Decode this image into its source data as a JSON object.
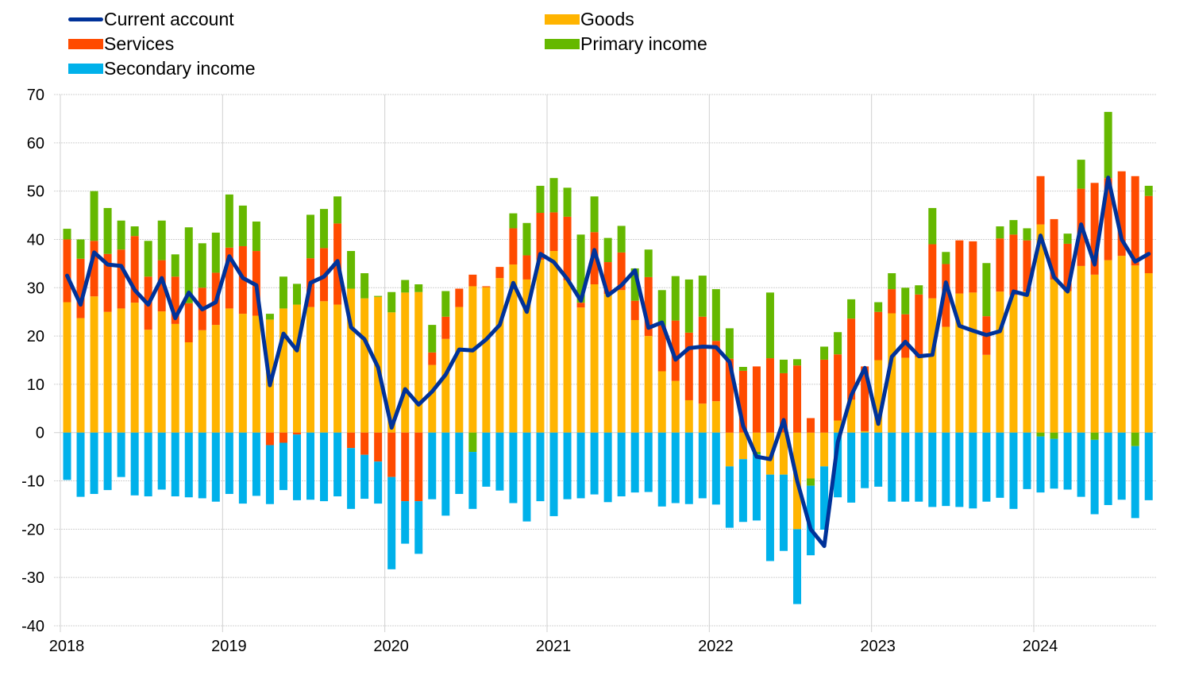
{
  "chart_data": {
    "type": "bar",
    "subtype": "stacked-bar-with-line",
    "title": "",
    "xlabel": "",
    "ylabel": "",
    "ylim": [
      -40,
      70
    ],
    "yticks": [
      70,
      60,
      50,
      40,
      30,
      20,
      10,
      0,
      -10,
      -20,
      -30,
      -40
    ],
    "xticks": [
      "2018",
      "2019",
      "2020",
      "2021",
      "2022",
      "2023",
      "2024"
    ],
    "grid": true,
    "legend_position": "top",
    "frequency": "monthly",
    "start": "2018-01",
    "end": "2024-09",
    "legend": [
      {
        "key": "ca",
        "label": "Current account",
        "type": "line",
        "color": "#003299"
      },
      {
        "key": "goods",
        "label": "Goods",
        "type": "bar",
        "color": "#FFB400"
      },
      {
        "key": "services",
        "label": "Services",
        "type": "bar",
        "color": "#FF4B00"
      },
      {
        "key": "primary",
        "label": "Primary income",
        "type": "bar",
        "color": "#65B800"
      },
      {
        "key": "secondary",
        "label": "Secondary income",
        "type": "bar",
        "color": "#00B1EA"
      }
    ],
    "series": [
      {
        "name": "Goods",
        "key": "goods",
        "values": [
          27.0,
          23.7,
          28.2,
          25.0,
          25.7,
          26.9,
          21.3,
          25.1,
          22.5,
          18.7,
          21.2,
          22.3,
          25.7,
          24.6,
          24.2,
          23.4,
          25.7,
          26.5,
          26.0,
          27.2,
          26.5,
          29.8,
          27.8,
          28.1,
          24.9,
          29.0,
          29.1,
          14.0,
          19.4,
          26.0,
          30.3,
          30.1,
          32.0,
          34.8,
          31.7,
          35.8,
          37.6,
          31.5,
          25.9,
          30.7,
          28.7,
          29.5,
          23.3,
          20.0,
          12.7,
          10.7,
          6.7,
          6.0,
          6.5,
          -7.0,
          -5.5,
          -4.0,
          -8.7,
          -8.7,
          -20.0,
          -9.5,
          -7.0,
          2.5,
          6.8,
          0.3,
          15.0,
          24.7,
          15.5,
          15.6,
          27.8,
          21.9,
          28.8,
          29.0,
          16.1,
          29.2,
          28.5,
          29.2,
          43.1,
          31.7,
          29.3,
          34.5,
          32.7,
          35.7,
          36.6,
          34.6,
          33.0
        ]
      },
      {
        "name": "Services",
        "key": "services",
        "values": [
          13.0,
          12.3,
          11.5,
          12.0,
          12.2,
          13.8,
          11.0,
          10.6,
          9.8,
          8.1,
          8.8,
          10.8,
          12.6,
          14.0,
          13.4,
          -2.6,
          -2.1,
          -0.4,
          10.1,
          11.0,
          16.8,
          -3.2,
          -4.6,
          -6.0,
          -9.2,
          -14.2,
          -14.2,
          2.6,
          4.6,
          3.8,
          2.4,
          0.2,
          2.3,
          7.5,
          5.0,
          9.7,
          8.0,
          13.2,
          1.0,
          10.8,
          6.6,
          7.8,
          4.0,
          12.2,
          9.5,
          12.5,
          14.0,
          18.0,
          12.5,
          15.3,
          12.8,
          13.7,
          15.4,
          12.3,
          13.9,
          3.0,
          15.1,
          13.7,
          16.8,
          13.4,
          10.0,
          5.0,
          9.0,
          13.0,
          11.2,
          13.0,
          11.0,
          10.6,
          8.0,
          11.0,
          12.5,
          10.6,
          10.0,
          12.5,
          9.8,
          16.0,
          19.0,
          17.0,
          17.5,
          18.5,
          16.0
        ]
      },
      {
        "name": "Primary income",
        "key": "primary",
        "values": [
          2.2,
          4.0,
          10.3,
          9.5,
          6.0,
          2.0,
          7.4,
          8.2,
          4.6,
          15.7,
          9.2,
          8.3,
          11.0,
          8.4,
          6.1,
          1.2,
          6.6,
          4.3,
          9.0,
          8.1,
          5.6,
          7.8,
          5.2,
          0.2,
          4.2,
          2.6,
          1.6,
          5.7,
          5.3,
          0.0,
          -4.0,
          0.0,
          0.0,
          3.1,
          6.7,
          5.6,
          7.1,
          6.0,
          14.1,
          7.4,
          5.0,
          5.5,
          6.7,
          5.7,
          7.3,
          9.2,
          11.0,
          8.5,
          10.7,
          6.3,
          0.8,
          -0.5,
          13.6,
          2.8,
          1.3,
          -1.5,
          2.7,
          4.6,
          4.0,
          0.0,
          2.0,
          3.3,
          5.5,
          1.9,
          7.5,
          2.5,
          0.0,
          0.0,
          11.0,
          2.5,
          3.0,
          2.5,
          -0.8,
          -1.3,
          2.1,
          6.0,
          -1.5,
          13.7,
          0.0,
          -2.8,
          2.1
        ]
      },
      {
        "name": "Secondary income",
        "key": "secondary",
        "values": [
          -9.8,
          -13.3,
          -12.7,
          -11.9,
          -9.2,
          -13.0,
          -13.2,
          -11.8,
          -13.2,
          -13.4,
          -13.6,
          -14.3,
          -12.7,
          -14.7,
          -13.1,
          -12.2,
          -9.8,
          -13.6,
          -13.9,
          -14.2,
          -13.2,
          -12.6,
          -9.1,
          -8.7,
          -19.1,
          -8.8,
          -10.9,
          -13.8,
          -17.2,
          -12.7,
          -11.8,
          -11.2,
          -12.0,
          -14.6,
          -18.4,
          -14.2,
          -17.3,
          -13.8,
          -13.6,
          -12.8,
          -14.4,
          -13.2,
          -12.4,
          -12.3,
          -15.3,
          -14.6,
          -14.8,
          -13.6,
          -14.9,
          -12.7,
          -13.0,
          -13.7,
          -17.9,
          -15.8,
          -15.5,
          -14.4,
          -13.1,
          -13.4,
          -14.5,
          -11.5,
          -11.2,
          -14.3,
          -14.3,
          -14.3,
          -15.4,
          -15.2,
          -15.4,
          -15.7,
          -14.3,
          -13.5,
          -15.8,
          -11.7,
          -11.6,
          -10.3,
          -11.8,
          -13.3,
          -15.4,
          -15.0,
          -13.9,
          -14.9,
          -14.0
        ]
      },
      {
        "name": "Current account",
        "key": "ca",
        "type": "line",
        "values": [
          32.5,
          26.5,
          37.3,
          34.8,
          34.5,
          29.5,
          26.5,
          32.0,
          23.7,
          29.0,
          25.5,
          27.0,
          36.5,
          32.0,
          30.5,
          9.8,
          20.5,
          17.0,
          31.0,
          32.3,
          35.5,
          21.8,
          19.3,
          13.5,
          1.0,
          9.0,
          5.8,
          8.5,
          12.0,
          17.2,
          17.0,
          19.3,
          22.3,
          31.0,
          25.0,
          37.0,
          35.3,
          31.8,
          27.3,
          37.8,
          28.4,
          30.5,
          33.6,
          21.7,
          22.8,
          15.1,
          17.5,
          17.8,
          17.7,
          14.6,
          1.4,
          -5.0,
          -5.5,
          2.6,
          -10.0,
          -20.0,
          -23.5,
          -2.0,
          7.7,
          13.4,
          1.8,
          15.7,
          18.8,
          15.8,
          16.1,
          31.1,
          22.1,
          21.1,
          20.2,
          21.0,
          29.2,
          28.5,
          40.8,
          32.2,
          29.2,
          43.1,
          34.8,
          52.8,
          40.0,
          35.4,
          37.0
        ]
      }
    ]
  }
}
